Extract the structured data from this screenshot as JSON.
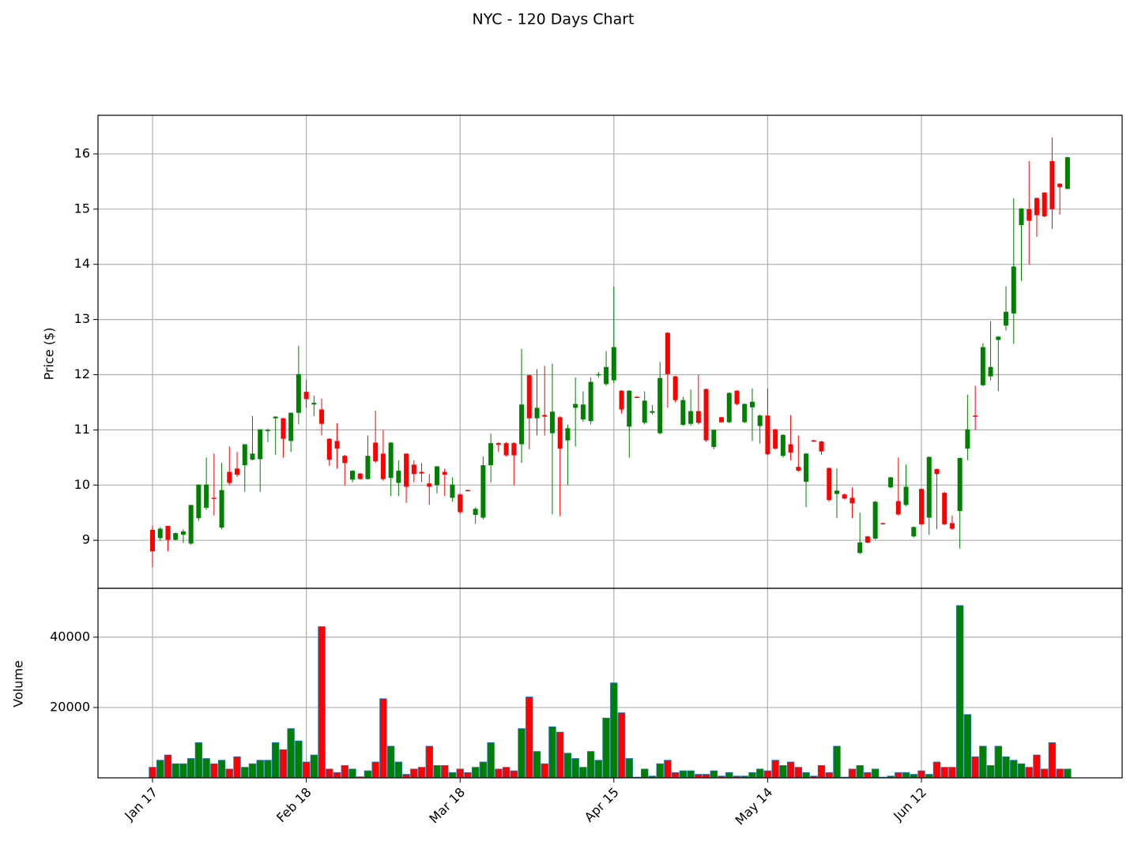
{
  "chart_data": {
    "type": "candlestick",
    "title": "NYC - 120 Days Chart",
    "ylabel": "Price ($)",
    "volume_label": "Volume",
    "up_color": "#008000",
    "down_color": "#ff0000",
    "volume_edge_color": "#1f77b4",
    "grid": true,
    "ylim": [
      8.13,
      16.7
    ],
    "yticks": [
      9,
      10,
      11,
      12,
      13,
      14,
      15,
      16
    ],
    "volume_ylim": [
      0,
      53900
    ],
    "volume_yticks": [
      20000,
      40000
    ],
    "categories": [
      "Jan 17",
      null,
      null,
      null,
      null,
      null,
      null,
      null,
      null,
      null,
      null,
      null,
      null,
      null,
      null,
      null,
      null,
      null,
      null,
      null,
      "Feb 18",
      null,
      null,
      null,
      null,
      null,
      null,
      null,
      null,
      null,
      null,
      null,
      null,
      null,
      null,
      null,
      null,
      null,
      null,
      null,
      "Mar 18",
      null,
      null,
      null,
      null,
      null,
      null,
      null,
      null,
      null,
      null,
      null,
      null,
      null,
      null,
      null,
      null,
      null,
      null,
      null,
      "Apr 15",
      null,
      null,
      null,
      null,
      null,
      null,
      null,
      null,
      null,
      null,
      null,
      null,
      null,
      null,
      null,
      null,
      null,
      null,
      null,
      "May 14",
      null,
      null,
      null,
      null,
      null,
      null,
      null,
      null,
      null,
      null,
      null,
      null,
      null,
      null,
      null,
      null,
      null,
      null,
      null,
      "Jun 12",
      null,
      null,
      null,
      null,
      null,
      null,
      null,
      null,
      null,
      null,
      null,
      null,
      null,
      null,
      null,
      null,
      null,
      null,
      null
    ],
    "open": [
      9.19,
      9.04,
      9.26,
      9.01,
      9.1,
      8.94,
      9.4,
      9.59,
      9.77,
      9.23,
      10.24,
      10.3,
      10.36,
      10.46,
      10.47,
      10.98,
      11.21,
      11.21,
      10.8,
      11.31,
      11.69,
      11.46,
      11.37,
      10.84,
      10.8,
      10.53,
      10.1,
      10.21,
      10.11,
      10.77,
      10.57,
      10.13,
      10.04,
      10.57,
      10.37,
      10.24,
      10.03,
      10.0,
      10.24,
      9.77,
      9.83,
      9.91,
      9.46,
      9.41,
      10.36,
      10.76,
      10.76,
      10.76,
      10.74,
      11.99,
      11.21,
      11.27,
      10.94,
      11.23,
      10.81,
      11.4,
      11.19,
      11.16,
      11.99,
      11.83,
      11.9,
      11.71,
      11.06,
      11.6,
      11.13,
      11.31,
      10.94,
      12.76,
      11.97,
      11.09,
      11.11,
      11.34,
      11.74,
      10.69,
      11.23,
      11.14,
      11.71,
      11.14,
      11.41,
      11.07,
      11.26,
      11.01,
      10.53,
      10.74,
      10.33,
      10.06,
      10.81,
      10.79,
      10.31,
      9.84,
      9.83,
      9.77,
      8.77,
      9.07,
      9.03,
      9.31,
      9.96,
      9.71,
      9.64,
      9.07,
      9.93,
      9.41,
      10.29,
      9.86,
      9.31,
      9.53,
      10.66,
      11.26,
      11.81,
      11.97,
      12.63,
      12.89,
      13.11,
      14.71,
      15.0,
      15.2,
      15.3,
      15.87,
      15.46,
      15.37
    ],
    "high": [
      9.26,
      9.24,
      9.26,
      9.14,
      9.2,
      9.64,
      10.01,
      10.5,
      10.57,
      10.4,
      10.7,
      10.6,
      10.74,
      11.25,
      11.01,
      11.02,
      11.25,
      11.22,
      11.31,
      12.52,
      11.9,
      11.62,
      11.57,
      10.85,
      11.12,
      10.55,
      10.27,
      10.22,
      10.9,
      11.35,
      11.0,
      10.78,
      10.45,
      10.58,
      10.45,
      10.4,
      10.2,
      10.34,
      10.3,
      10.14,
      9.85,
      9.92,
      9.6,
      10.52,
      10.93,
      10.78,
      10.78,
      10.78,
      12.47,
      12.0,
      12.1,
      12.16,
      12.2,
      11.25,
      11.1,
      11.95,
      11.7,
      11.95,
      12.05,
      12.43,
      13.6,
      11.72,
      11.72,
      11.61,
      11.7,
      11.45,
      12.23,
      12.77,
      11.98,
      11.6,
      11.73,
      12.0,
      11.75,
      11.01,
      11.24,
      11.68,
      11.72,
      11.48,
      11.75,
      11.28,
      11.75,
      11.02,
      10.92,
      11.27,
      10.9,
      10.58,
      10.82,
      10.8,
      10.32,
      10.3,
      9.85,
      9.96,
      9.5,
      9.08,
      9.71,
      9.32,
      10.15,
      10.5,
      10.37,
      9.25,
      9.94,
      10.52,
      10.3,
      9.88,
      9.45,
      10.5,
      11.64,
      11.8,
      12.57,
      12.97,
      12.7,
      13.6,
      15.2,
      15.02,
      15.87,
      15.21,
      15.31,
      16.3,
      15.47,
      15.95
    ],
    "low": [
      8.51,
      8.99,
      8.8,
      9.0,
      8.95,
      8.92,
      9.35,
      9.55,
      9.45,
      9.2,
      10.0,
      10.15,
      9.88,
      10.45,
      9.88,
      10.78,
      10.55,
      10.5,
      10.6,
      11.1,
      11.4,
      11.25,
      10.9,
      10.35,
      10.3,
      10.0,
      10.05,
      10.1,
      10.1,
      10.4,
      10.08,
      9.8,
      9.8,
      9.68,
      10.05,
      10.05,
      9.64,
      9.85,
      9.8,
      9.7,
      9.48,
      9.89,
      9.3,
      9.38,
      10.05,
      10.6,
      10.52,
      10.0,
      10.4,
      10.65,
      10.9,
      10.9,
      9.47,
      9.44,
      10.0,
      10.7,
      11.15,
      11.1,
      11.95,
      11.8,
      11.85,
      11.3,
      10.5,
      11.58,
      11.1,
      11.28,
      10.92,
      11.4,
      11.5,
      11.08,
      11.08,
      11.1,
      10.78,
      10.65,
      11.13,
      11.12,
      11.45,
      11.12,
      10.8,
      10.75,
      10.54,
      10.64,
      10.5,
      10.45,
      10.24,
      9.6,
      10.79,
      10.55,
      9.7,
      9.4,
      9.74,
      9.4,
      8.75,
      8.95,
      9.01,
      9.29,
      9.94,
      9.45,
      9.62,
      9.05,
      9.27,
      9.1,
      9.2,
      9.27,
      9.19,
      8.85,
      10.45,
      11.0,
      11.79,
      11.9,
      11.7,
      12.8,
      12.56,
      13.7,
      14.0,
      14.5,
      14.85,
      14.64,
      14.9,
      15.35
    ],
    "close": [
      8.8,
      9.21,
      9.01,
      9.13,
      9.16,
      9.64,
      10.01,
      10.01,
      9.75,
      9.91,
      10.04,
      10.19,
      10.74,
      10.57,
      11.01,
      11.0,
      11.24,
      10.84,
      11.31,
      12.01,
      11.56,
      11.49,
      11.11,
      10.46,
      10.66,
      10.4,
      10.26,
      10.11,
      10.53,
      10.43,
      10.11,
      10.77,
      10.26,
      9.97,
      10.2,
      10.21,
      9.97,
      10.34,
      10.19,
      10.01,
      9.51,
      9.9,
      9.57,
      10.36,
      10.76,
      10.73,
      10.54,
      10.54,
      11.46,
      11.21,
      11.4,
      11.24,
      11.33,
      10.66,
      11.03,
      11.47,
      11.46,
      11.87,
      12.01,
      12.14,
      12.5,
      11.37,
      11.71,
      11.59,
      11.53,
      11.34,
      11.94,
      12.01,
      11.54,
      11.54,
      11.34,
      11.13,
      10.81,
      11.0,
      11.14,
      11.67,
      11.47,
      11.47,
      11.51,
      11.26,
      10.56,
      10.66,
      10.91,
      10.59,
      10.26,
      10.57,
      10.8,
      10.61,
      9.73,
      9.9,
      9.76,
      9.67,
      8.96,
      8.96,
      9.7,
      9.3,
      10.14,
      9.47,
      9.97,
      9.24,
      9.29,
      10.51,
      10.2,
      9.29,
      9.21,
      10.49,
      11.01,
      11.24,
      12.5,
      12.14,
      12.69,
      13.14,
      13.96,
      15.01,
      14.79,
      14.89,
      14.87,
      15.0,
      15.4,
      15.94
    ],
    "volume": [
      3000,
      5000,
      6500,
      4000,
      4000,
      5500,
      10000,
      5500,
      4000,
      5000,
      2500,
      6000,
      3000,
      4000,
      5000,
      5000,
      10000,
      8000,
      14000,
      10500,
      4500,
      6500,
      43000,
      2500,
      1500,
      3500,
      2500,
      300,
      2000,
      4500,
      22500,
      9000,
      4500,
      1000,
      2500,
      3000,
      9000,
      3500,
      3500,
      1500,
      2500,
      1500,
      3000,
      4500,
      10000,
      2500,
      3000,
      2000,
      14000,
      23000,
      7500,
      4000,
      14500,
      13000,
      7000,
      5500,
      3000,
      7500,
      5000,
      17000,
      27000,
      18500,
      5500,
      200,
      2500,
      500,
      4000,
      5000,
      1500,
      2000,
      2000,
      1000,
      1000,
      2000,
      500,
      1500,
      500,
      500,
      1500,
      2500,
      2000,
      5000,
      3500,
      4500,
      3000,
      1500,
      500,
      3500,
      1500,
      9000,
      200,
      2500,
      3500,
      1500,
      2500,
      200,
      500,
      1500,
      1500,
      1000,
      2000,
      1000,
      4500,
      3000,
      3000,
      49000,
      18000,
      6000,
      9000,
      3500,
      9000,
      6000,
      5000,
      4000,
      3000,
      6500,
      2500,
      10000,
      2500,
      2500
    ]
  }
}
